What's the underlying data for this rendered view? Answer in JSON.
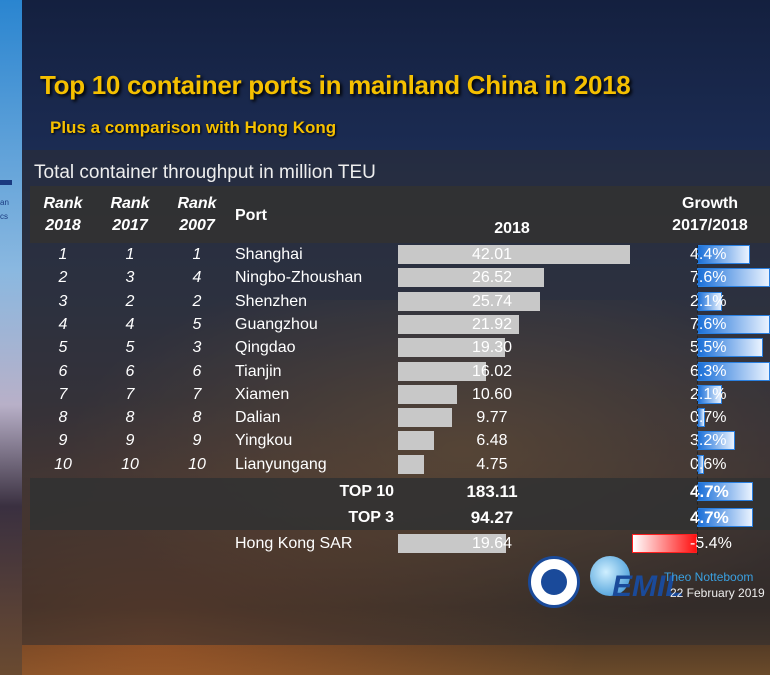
{
  "title": "Top 10 container ports in mainland China in 2018",
  "subtitle": "Plus a comparison with Hong Kong",
  "side_text": [
    "an",
    "cs"
  ],
  "chart_data": {
    "type": "table",
    "title": "Total container throughput in million TEU",
    "headers": {
      "rank2018": [
        "Rank",
        "2018"
      ],
      "rank2017": [
        "Rank",
        "2017"
      ],
      "rank2007": [
        "Rank",
        "2007"
      ],
      "port": "Port",
      "teu": "2018",
      "growth": [
        "Growth",
        "2017/2018"
      ]
    },
    "rows": [
      {
        "rank2018": "1",
        "rank2017": "1",
        "rank2007": "1",
        "port": "Shanghai",
        "teu": 42.01,
        "teu_label": "42.01",
        "growth": 4.4,
        "growth_label": "4.4%"
      },
      {
        "rank2018": "2",
        "rank2017": "3",
        "rank2007": "4",
        "port": "Ningbo-Zhoushan",
        "teu": 26.52,
        "teu_label": "26.52",
        "growth": 7.6,
        "growth_label": "7.6%"
      },
      {
        "rank2018": "3",
        "rank2017": "2",
        "rank2007": "2",
        "port": "Shenzhen",
        "teu": 25.74,
        "teu_label": "25.74",
        "growth": 2.1,
        "growth_label": "2.1%"
      },
      {
        "rank2018": "4",
        "rank2017": "4",
        "rank2007": "5",
        "port": "Guangzhou",
        "teu": 21.92,
        "teu_label": "21.92",
        "growth": 7.6,
        "growth_label": "7.6%"
      },
      {
        "rank2018": "5",
        "rank2017": "5",
        "rank2007": "3",
        "port": "Qingdao",
        "teu": 19.3,
        "teu_label": "19.30",
        "growth": 5.5,
        "growth_label": "5.5%"
      },
      {
        "rank2018": "6",
        "rank2017": "6",
        "rank2007": "6",
        "port": "Tianjin",
        "teu": 16.02,
        "teu_label": "16.02",
        "growth": 6.3,
        "growth_label": "6.3%"
      },
      {
        "rank2018": "7",
        "rank2017": "7",
        "rank2007": "7",
        "port": "Xiamen",
        "teu": 10.6,
        "teu_label": "10.60",
        "growth": 2.1,
        "growth_label": "2.1%"
      },
      {
        "rank2018": "8",
        "rank2017": "8",
        "rank2007": "8",
        "port": "Dalian",
        "teu": 9.77,
        "teu_label": "9.77",
        "growth": 0.7,
        "growth_label": "0.7%"
      },
      {
        "rank2018": "9",
        "rank2017": "9",
        "rank2007": "9",
        "port": "Yingkou",
        "teu": 6.48,
        "teu_label": "6.48",
        "growth": 3.2,
        "growth_label": "3.2%"
      },
      {
        "rank2018": "10",
        "rank2017": "10",
        "rank2007": "10",
        "port": "Lianyungang",
        "teu": 4.75,
        "teu_label": "4.75",
        "growth": 0.6,
        "growth_label": "0.6%"
      }
    ],
    "totals": [
      {
        "label": "TOP 10",
        "teu": 183.11,
        "teu_label": "183.11",
        "growth": 4.7,
        "growth_label": "4.7%"
      },
      {
        "label": "TOP 3",
        "teu": 94.27,
        "teu_label": "94.27",
        "growth": 4.7,
        "growth_label": "4.7%"
      }
    ],
    "comparison": {
      "port": "Hong Kong SAR",
      "teu": 19.64,
      "teu_label": "19.64",
      "growth": -5.4,
      "growth_label": "-5.4%"
    },
    "colors": {
      "throughput_bar": "#c8c8c8",
      "growth_positive": "#1a6fd8",
      "growth_negative": "#ff1010",
      "title": "#f5c000"
    }
  },
  "footer": {
    "author": "Theo Notteboom",
    "date": "22 February 2019",
    "logo_text": "CEMIL"
  }
}
